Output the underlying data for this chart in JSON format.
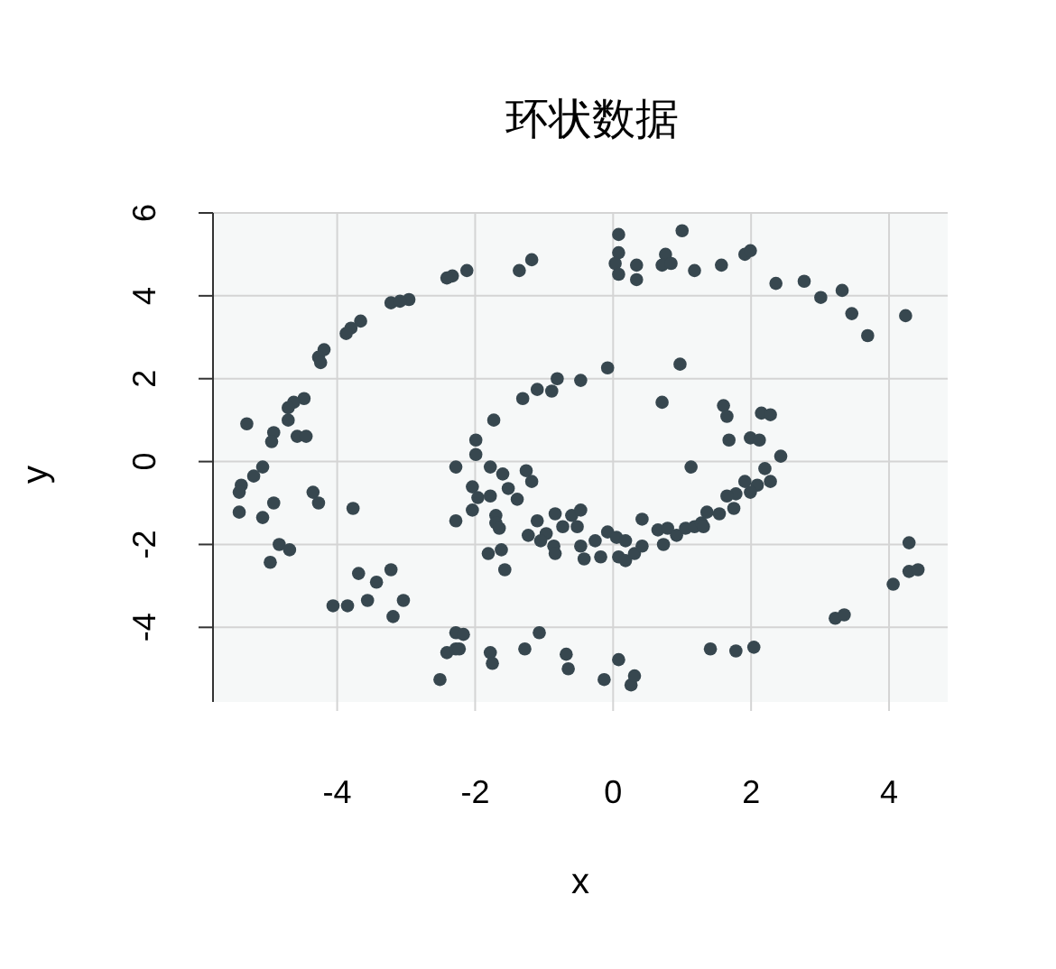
{
  "chart_data": {
    "type": "scatter",
    "title": "环状数据",
    "xlabel": "x",
    "ylabel": "y",
    "x": [
      0.08,
      1.0,
      0.08,
      0.03,
      0.08,
      0.34,
      0.34,
      0.76,
      0.71,
      0.84,
      1.18,
      -1.36,
      -1.18,
      -2.12,
      -2.33,
      1.57,
      1.91,
      1.99,
      2.36,
      2.77,
      3.01,
      3.32,
      3.46,
      3.69,
      4.24,
      1.6,
      1.65,
      2.15,
      2.28,
      1.68,
      1.99,
      2.12,
      2.43,
      -2.41,
      -3.22,
      -2.96,
      -3.09,
      -3.66,
      -3.8,
      -3.87,
      -4.19,
      -4.27,
      -4.24,
      -4.48,
      -4.63,
      -4.71,
      -4.71,
      -5.31,
      -4.92,
      -4.95,
      -4.58,
      -4.45,
      -5.08,
      -5.21,
      -5.39,
      -5.42,
      -5.42,
      -5.08,
      -4.92,
      -4.35,
      -4.27,
      -3.77,
      -4.84,
      -4.69,
      -4.97,
      -3.69,
      -3.43,
      -3.22,
      -3.56,
      -3.04,
      -3.19,
      -4.06,
      -3.85,
      -2.28,
      -2.28,
      -2.28,
      -2.41,
      -2.28,
      -2.51,
      -1.99,
      -1.78,
      -1.6,
      -1.26,
      -1.18,
      -2.04,
      -1.96,
      -1.78,
      -1.52,
      -1.39,
      -2.04,
      -1.7,
      -1.7,
      -1.65,
      -1.81,
      -1.62,
      -1.57,
      -1.1,
      -1.23,
      -0.97,
      -0.84,
      -0.73,
      -0.6,
      -0.47,
      -0.52,
      -1.05,
      -0.86,
      -0.84,
      -0.47,
      -0.26,
      -0.42,
      -0.18,
      -0.08,
      0.05,
      0.18,
      0.08,
      0.18,
      0.31,
      0.42,
      0.42,
      0.65,
      0.79,
      0.92,
      0.73,
      1.05,
      1.18,
      1.28,
      1.36,
      1.13,
      -2.17,
      -2.23,
      -1.78,
      -1.75,
      -1.28,
      -1.07,
      -0.68,
      -0.65,
      -0.13,
      0.08,
      0.26,
      0.31,
      1.41,
      2.2,
      2.28,
      2.09,
      1.99,
      1.91,
      1.78,
      1.65,
      1.75,
      1.54,
      1.31,
      1.78,
      2.04,
      3.22,
      3.35,
      4.06,
      4.29,
      4.29,
      4.42,
      -1.99,
      -1.73,
      -1.31,
      -1.1,
      -0.89,
      -0.81,
      -0.47,
      -0.08,
      0.97,
      0.71
    ],
    "values": [
      5.48,
      5.57,
      5.04,
      4.78,
      4.52,
      4.74,
      4.39,
      5.0,
      4.74,
      4.78,
      4.61,
      4.61,
      4.87,
      4.61,
      4.48,
      4.74,
      5.0,
      5.09,
      4.3,
      4.35,
      3.96,
      4.13,
      3.57,
      3.04,
      3.52,
      1.35,
      1.09,
      1.17,
      1.13,
      0.52,
      0.57,
      0.52,
      0.13,
      4.43,
      3.83,
      3.91,
      3.87,
      3.39,
      3.22,
      3.09,
      2.7,
      2.52,
      2.39,
      1.52,
      1.43,
      1.3,
      1.0,
      0.91,
      0.7,
      0.48,
      0.61,
      0.61,
      -0.13,
      -0.35,
      -0.57,
      -0.74,
      -1.22,
      -1.35,
      -1.0,
      -0.74,
      -1.0,
      -1.13,
      -2.0,
      -2.13,
      -2.43,
      -2.7,
      -2.91,
      -2.61,
      -3.35,
      -3.35,
      -3.74,
      -3.48,
      -3.48,
      -0.13,
      -1.43,
      -4.13,
      -4.61,
      -4.52,
      -5.26,
      0.17,
      -0.13,
      -0.3,
      -0.22,
      -0.48,
      -0.61,
      -0.87,
      -0.83,
      -0.65,
      -0.91,
      -1.17,
      -1.3,
      -1.48,
      -1.61,
      -2.22,
      -2.13,
      -2.61,
      -1.43,
      -1.78,
      -1.74,
      -1.26,
      -1.57,
      -1.3,
      -1.17,
      -1.57,
      -1.91,
      -2.04,
      -2.22,
      -2.04,
      -1.91,
      -2.35,
      -2.3,
      -1.7,
      -1.83,
      -1.91,
      -2.3,
      -2.39,
      -2.22,
      -2.04,
      -1.39,
      -1.65,
      -1.61,
      -1.78,
      -2.0,
      -1.61,
      -1.57,
      -1.48,
      -1.22,
      -0.13,
      -4.17,
      -4.52,
      -4.61,
      -4.87,
      -4.52,
      -4.13,
      -4.65,
      -5.0,
      -5.26,
      -4.78,
      -5.39,
      -5.17,
      -4.52,
      -0.17,
      -0.48,
      -0.57,
      -0.74,
      -0.48,
      -0.78,
      -0.83,
      -1.13,
      -1.26,
      -1.57,
      -4.57,
      -4.48,
      -3.78,
      -3.7,
      -2.96,
      -1.96,
      -2.65,
      -2.61,
      0.52,
      1.0,
      1.52,
      1.74,
      1.7,
      2.0,
      1.96,
      2.26,
      2.35,
      1.43
    ],
    "color": "#37474f",
    "marker": "circle",
    "grid": true,
    "xlim": [
      -5.8,
      4.85
    ],
    "ylim": [
      -5.8,
      6.0
    ],
    "xticks": [
      -4,
      -2,
      0,
      2,
      4
    ],
    "yticks": [
      -4,
      -2,
      0,
      2,
      4,
      6
    ]
  }
}
